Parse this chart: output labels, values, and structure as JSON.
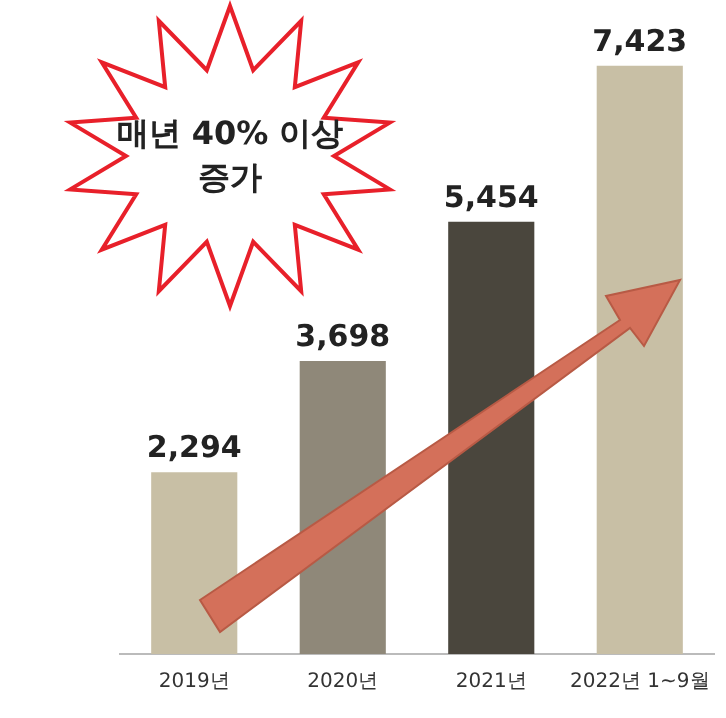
{
  "chart_data": {
    "type": "bar",
    "categories": [
      "2019년",
      "2020년",
      "2021년",
      "2022년 1~9월"
    ],
    "values": [
      2294,
      3698,
      5454,
      7423
    ],
    "colors": [
      "#c8bfa5",
      "#8f8879",
      "#4a463d",
      "#c8bfa5"
    ],
    "value_labels": [
      "2,294",
      "3,698",
      "5,454",
      "7,423"
    ],
    "annotations": [
      "매년 40% 이상\n증가"
    ],
    "grid": false,
    "legend": false
  }
}
